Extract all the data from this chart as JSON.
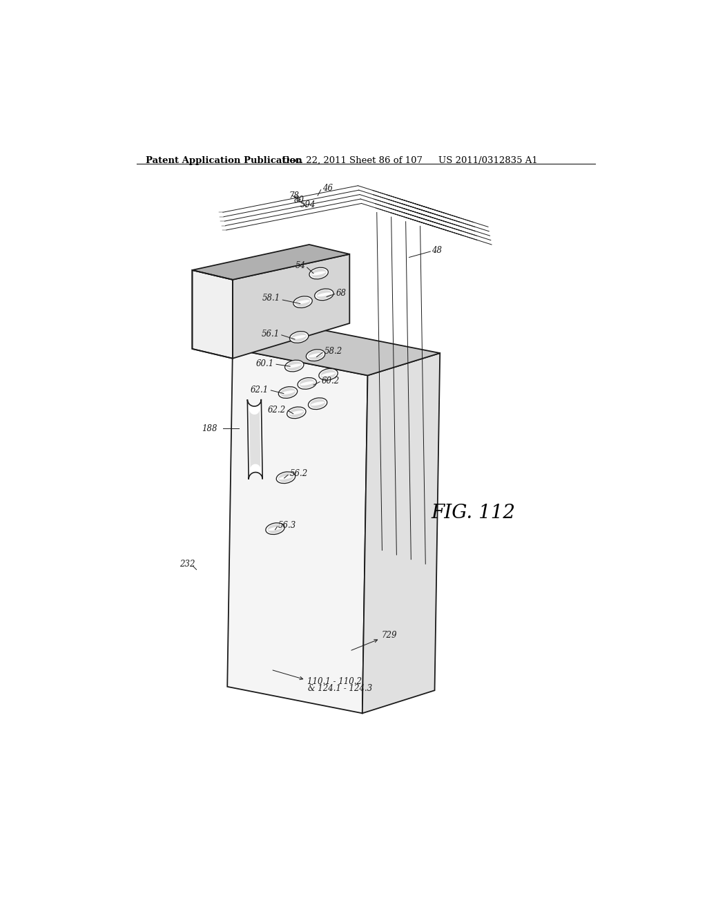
{
  "bg_color": "#ffffff",
  "header_text": "Patent Application Publication",
  "header_date": "Dec. 22, 2011",
  "header_sheet": "Sheet 86 of 107",
  "header_patent": "US 2011/0312835 A1",
  "fig_label": "FIG. 112",
  "face_color": "#f5f5f5",
  "right_face_color": "#e0e0e0",
  "right_face_color2": "#d0d0d0",
  "bottom_conn_color": "#c8c8c8",
  "line_color": "#1a1a1a",
  "lw_main": 1.3,
  "lw_thin": 0.8,
  "lw_layer": 0.7,
  "label_fs": 8.5,
  "fig_fs": 20,
  "header_fs": 9.5
}
